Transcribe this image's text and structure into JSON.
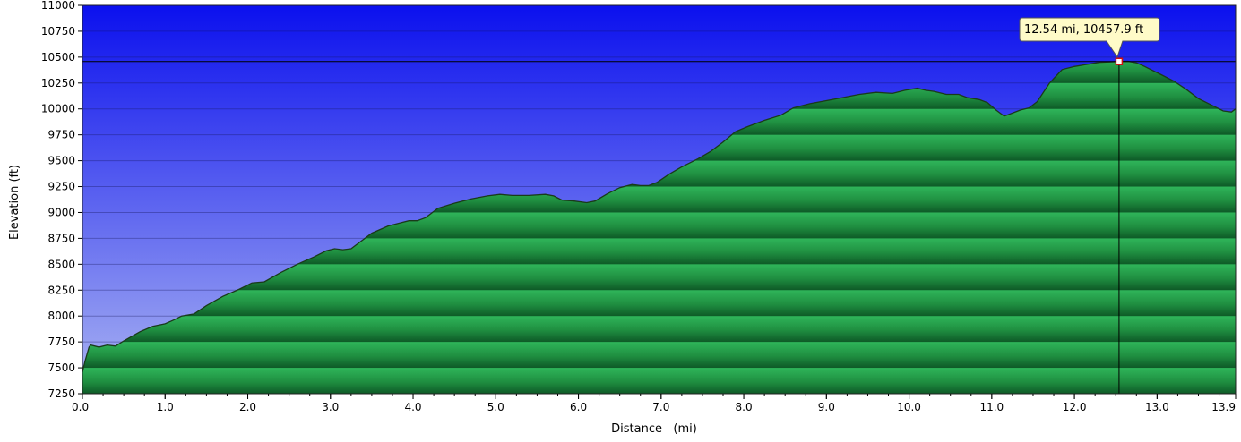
{
  "colors": {
    "sky_top": "#0b10ee",
    "sky_bottom": "#aab4f2",
    "fill_light": "#2fb55a",
    "fill_dark": "#0e5a27",
    "profile_line": "#1a3a1a",
    "callout_bg": "#fffbc8"
  },
  "chart_data": {
    "type": "area",
    "xlabel": "Distance   (mi)",
    "ylabel": "Elevation  (ft)",
    "xlim": [
      0,
      13.95
    ],
    "ylim": [
      7250,
      11000
    ],
    "x_ticks": [
      "0.0",
      "1.0",
      "2.0",
      "3.0",
      "4.0",
      "5.0",
      "6.0",
      "7.0",
      "8.0",
      "9.0",
      "10.0",
      "11.0",
      "12.0",
      "13.0",
      "13.9"
    ],
    "x_tick_values": [
      0,
      1,
      2,
      3,
      4,
      5,
      6,
      7,
      8,
      9,
      10,
      11,
      12,
      13,
      13.95
    ],
    "y_ticks": [
      "7250",
      "7500",
      "7750",
      "8000",
      "8250",
      "8500",
      "8750",
      "9000",
      "9250",
      "9500",
      "9750",
      "10000",
      "10250",
      "10500",
      "10750",
      "11000"
    ],
    "y_tick_values": [
      7250,
      7500,
      7750,
      8000,
      8250,
      8500,
      8750,
      9000,
      9250,
      9500,
      9750,
      10000,
      10250,
      10500,
      10750,
      11000
    ],
    "grid": true,
    "x": [
      0,
      0.03,
      0.08,
      0.1,
      0.2,
      0.3,
      0.4,
      0.5,
      0.7,
      0.85,
      1.0,
      1.1,
      1.2,
      1.35,
      1.5,
      1.7,
      1.9,
      2.05,
      2.2,
      2.4,
      2.6,
      2.8,
      2.95,
      3.05,
      3.15,
      3.25,
      3.35,
      3.5,
      3.7,
      3.85,
      3.95,
      4.05,
      4.15,
      4.3,
      4.5,
      4.7,
      4.9,
      5.05,
      5.2,
      5.4,
      5.6,
      5.7,
      5.8,
      5.95,
      6.1,
      6.2,
      6.35,
      6.5,
      6.65,
      6.75,
      6.85,
      6.95,
      7.1,
      7.25,
      7.45,
      7.6,
      7.75,
      7.9,
      8.05,
      8.25,
      8.45,
      8.6,
      8.8,
      9.0,
      9.2,
      9.4,
      9.6,
      9.8,
      9.95,
      10.1,
      10.2,
      10.3,
      10.45,
      10.6,
      10.7,
      10.85,
      10.95,
      11.05,
      11.15,
      11.25,
      11.35,
      11.45,
      11.55,
      11.7,
      11.85,
      12.0,
      12.15,
      12.3,
      12.45,
      12.54,
      12.65,
      12.75,
      12.85,
      12.95,
      13.05,
      13.2,
      13.35,
      13.5,
      13.65,
      13.8,
      13.9,
      13.95
    ],
    "series": [
      {
        "values": [
          7460,
          7560,
          7700,
          7720,
          7700,
          7720,
          7710,
          7760,
          7850,
          7900,
          7925,
          7960,
          8000,
          8020,
          8100,
          8190,
          8260,
          8320,
          8330,
          8420,
          8500,
          8570,
          8630,
          8650,
          8640,
          8650,
          8710,
          8800,
          8870,
          8900,
          8920,
          8920,
          8950,
          9040,
          9090,
          9130,
          9160,
          9175,
          9165,
          9165,
          9175,
          9160,
          9120,
          9110,
          9095,
          9110,
          9180,
          9240,
          9270,
          9260,
          9260,
          9290,
          9370,
          9440,
          9520,
          9590,
          9680,
          9780,
          9830,
          9890,
          9940,
          10010,
          10050,
          10080,
          10110,
          10140,
          10160,
          10150,
          10180,
          10200,
          10180,
          10170,
          10140,
          10140,
          10110,
          10090,
          10060,
          9990,
          9930,
          9960,
          9990,
          10010,
          10070,
          10250,
          10380,
          10410,
          10430,
          10450,
          10455,
          10458,
          10460,
          10445,
          10410,
          10370,
          10330,
          10270,
          10190,
          10100,
          10040,
          9980,
          9970,
          10000
        ]
      }
    ],
    "marker": {
      "x": 12.54,
      "y": 10457.9
    },
    "callout_label": "12.54 mi, 10457.9 ft"
  }
}
